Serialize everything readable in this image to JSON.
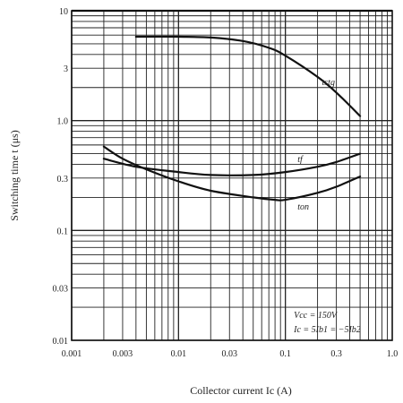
{
  "chart_data": {
    "type": "line",
    "xlabel": "Collector current  Ic (A)",
    "ylabel": "Switching time  t (μs)",
    "xscale": "log",
    "yscale": "log",
    "xlim": [
      0.001,
      1.0
    ],
    "ylim": [
      0.01,
      10
    ],
    "grid": true,
    "xticks": [
      {
        "v": 0.001,
        "label": "0.001"
      },
      {
        "v": 0.003,
        "label": "0.003"
      },
      {
        "v": 0.01,
        "label": "0.01"
      },
      {
        "v": 0.03,
        "label": "0.03"
      },
      {
        "v": 0.1,
        "label": "0.1"
      },
      {
        "v": 0.3,
        "label": "0.3"
      },
      {
        "v": 1.0,
        "label": "1.0"
      }
    ],
    "yticks": [
      {
        "v": 0.01,
        "label": "0.01"
      },
      {
        "v": 0.03,
        "label": "0.03"
      },
      {
        "v": 0.1,
        "label": "0.1"
      },
      {
        "v": 0.3,
        "label": "0.3"
      },
      {
        "v": 1.0,
        "label": "1.0"
      },
      {
        "v": 3,
        "label": "3"
      },
      {
        "v": 10,
        "label": "10"
      }
    ],
    "series": [
      {
        "name": "tstg",
        "x": [
          0.004,
          0.01,
          0.02,
          0.04,
          0.07,
          0.1,
          0.2,
          0.3,
          0.5
        ],
        "y": [
          5.8,
          5.8,
          5.7,
          5.3,
          4.6,
          3.9,
          2.5,
          1.8,
          1.1
        ]
      },
      {
        "name": "tf",
        "x": [
          0.002,
          0.004,
          0.01,
          0.02,
          0.05,
          0.1,
          0.2,
          0.3,
          0.5
        ],
        "y": [
          0.45,
          0.38,
          0.34,
          0.32,
          0.32,
          0.34,
          0.38,
          0.42,
          0.5
        ]
      },
      {
        "name": "ton",
        "x": [
          0.002,
          0.003,
          0.005,
          0.01,
          0.02,
          0.05,
          0.08,
          0.1,
          0.2,
          0.3,
          0.5
        ],
        "y": [
          0.58,
          0.45,
          0.36,
          0.28,
          0.23,
          0.2,
          0.19,
          0.19,
          0.22,
          0.25,
          0.31
        ]
      }
    ],
    "annotations": [
      "Vcc = 150V",
      "Ic = 5Ib1 = −5Ib2"
    ]
  }
}
